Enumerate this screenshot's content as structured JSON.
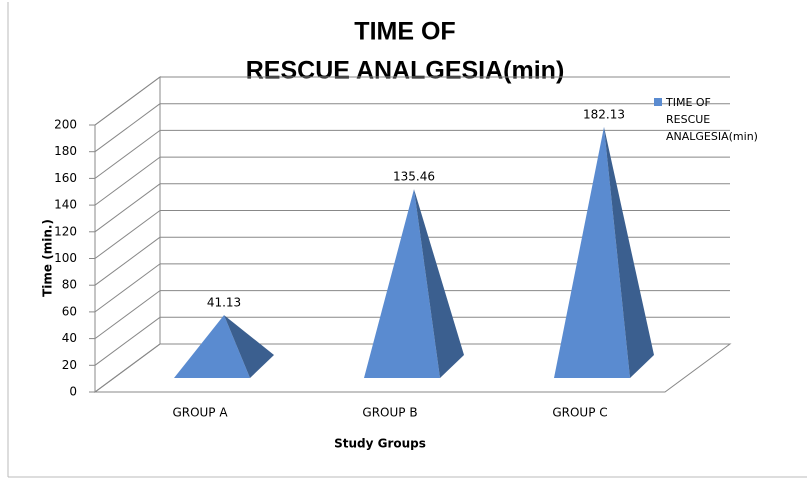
{
  "chart_data": {
    "type": "pyramid3d",
    "title": [
      "TIME OF",
      "RESCUE ANALGESIA(min)"
    ],
    "x_label": "Study Groups",
    "y_label": "Time (min.)",
    "categories": [
      "GROUP A",
      "GROUP B",
      "GROUP C"
    ],
    "series": [
      {
        "name": "TIME OF RESCUE ANALGESIA(min)",
        "color": "#5a8bd0",
        "values": [
          41.13,
          135.46,
          182.13
        ]
      }
    ],
    "ylim": [
      0,
      200
    ],
    "yticks": [
      0,
      20,
      40,
      60,
      80,
      100,
      120,
      140,
      160,
      180,
      200
    ],
    "grid": true,
    "legend": "right"
  }
}
